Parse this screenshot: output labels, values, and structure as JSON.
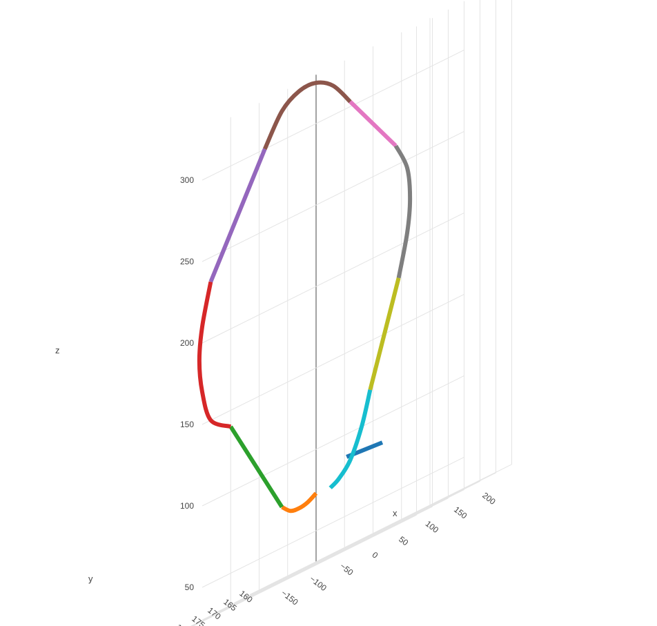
{
  "chart_data": {
    "type": "line3d",
    "title": "",
    "axes": {
      "x": {
        "label": "x",
        "ticks": [
          "−150",
          "−100",
          "−50",
          "0",
          "50",
          "100",
          "150",
          "200"
        ]
      },
      "y": {
        "label": "y",
        "ticks": [
          "160",
          "165",
          "170",
          "175",
          "180",
          "185",
          "190"
        ]
      },
      "z": {
        "label": "z",
        "ticks": [
          "50",
          "100",
          "150",
          "200",
          "250",
          "300"
        ]
      }
    },
    "grid": true,
    "series": [
      {
        "color": "#1f77b4",
        "points": [
          [
            -30,
            160,
            85
          ],
          [
            200,
            190,
            85
          ]
        ]
      },
      {
        "color": "#ff7f0e",
        "points": [
          [
            -60,
            175,
            75
          ],
          [
            -45,
            175,
            70
          ],
          [
            -30,
            175,
            69
          ],
          [
            -15,
            175,
            70
          ],
          [
            0,
            175,
            73
          ]
        ]
      },
      {
        "color": "#2ca02c",
        "points": [
          [
            -150,
            175,
            140
          ],
          [
            -60,
            175,
            75
          ]
        ]
      },
      {
        "color": "#d62728",
        "points": [
          [
            -185,
            175,
            235
          ],
          [
            -200,
            175,
            210
          ],
          [
            -205,
            175,
            190
          ],
          [
            -200,
            175,
            170
          ],
          [
            -185,
            175,
            150
          ],
          [
            -150,
            175,
            140
          ]
        ]
      },
      {
        "color": "#9467bd",
        "points": [
          [
            -185,
            175,
            235
          ],
          [
            -90,
            175,
            300
          ]
        ]
      },
      {
        "color": "#8c564b",
        "points": [
          [
            -90,
            175,
            300
          ],
          [
            -60,
            175,
            318
          ],
          [
            -30,
            175,
            325
          ],
          [
            0,
            175,
            325
          ],
          [
            30,
            175,
            318
          ],
          [
            60,
            175,
            303
          ]
        ]
      },
      {
        "color": "#e377c2",
        "points": [
          [
            60,
            175,
            303
          ],
          [
            140,
            175,
            262
          ]
        ]
      },
      {
        "color": "#7f7f7f",
        "points": [
          [
            140,
            175,
            262
          ],
          [
            160,
            175,
            245
          ],
          [
            165,
            175,
            225
          ],
          [
            160,
            175,
            205
          ],
          [
            145,
            175,
            180
          ]
        ]
      },
      {
        "color": "#bcbd22",
        "points": [
          [
            145,
            175,
            180
          ],
          [
            95,
            175,
            120
          ]
        ]
      },
      {
        "color": "#17becf",
        "points": [
          [
            95,
            175,
            120
          ],
          [
            80,
            175,
            100
          ],
          [
            60,
            175,
            83
          ],
          [
            40,
            175,
            75
          ],
          [
            25,
            175,
            72
          ]
        ]
      }
    ]
  }
}
